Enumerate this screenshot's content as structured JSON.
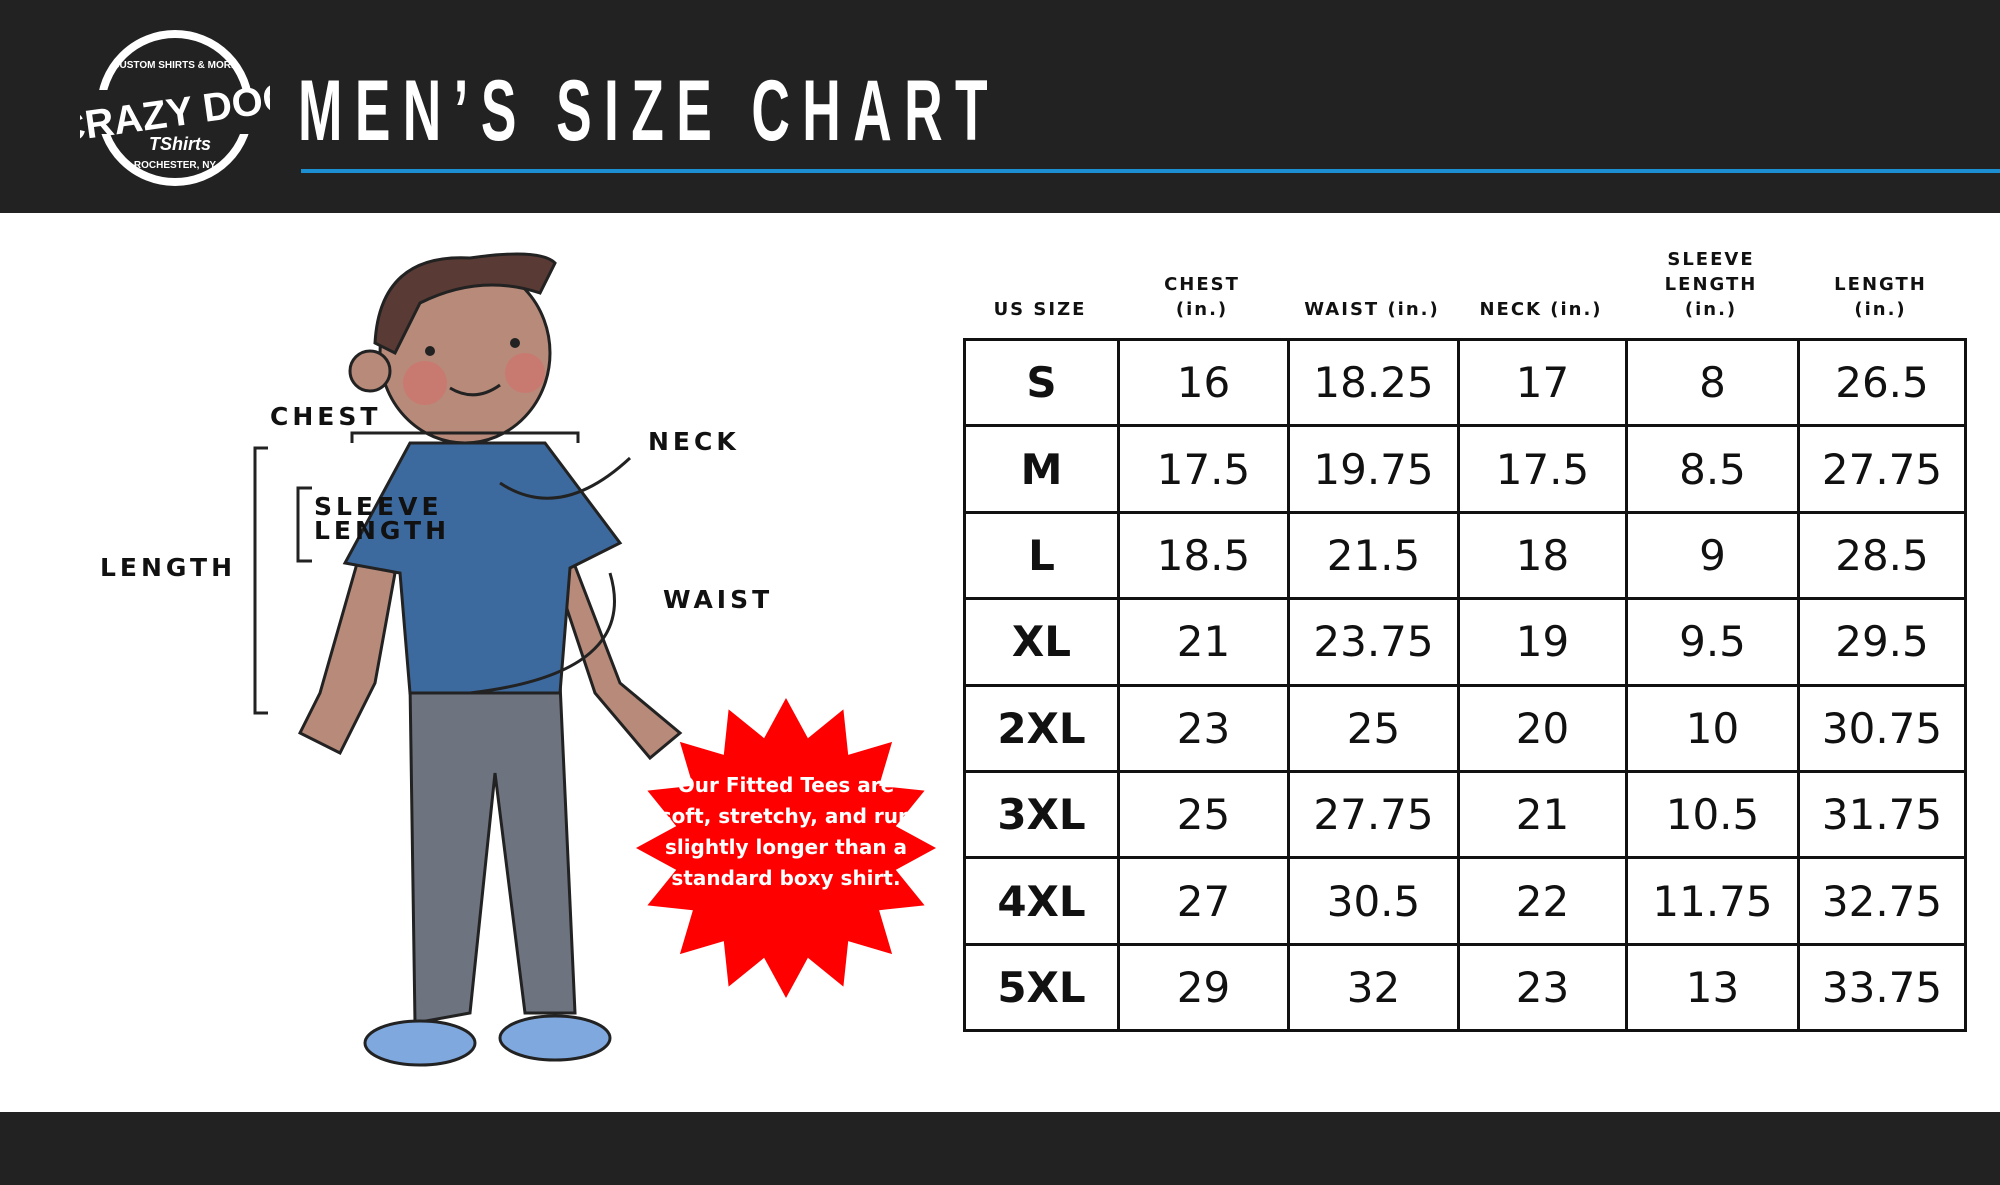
{
  "colors": {
    "accent": "#1b8fd2",
    "header_bg": "#222222",
    "burst": "#ff0000"
  },
  "logo": {
    "text": "CRAZY DOG",
    "sub": "TShirts",
    "top": "CUSTOM SHIRTS & MORE",
    "bottom": "ROCHESTER, NY"
  },
  "title": "MEN’S SIZE CHART",
  "figure_labels": {
    "chest": "CHEST",
    "neck": "NECK",
    "sleeve1": "SLEEVE",
    "sleeve2": "LENGTH",
    "length": "LENGTH",
    "waist": "WAIST"
  },
  "note": "Our Fitted Tees are soft, stretchy, and run slightly longer than a standard boxy shirt.",
  "table": {
    "headers": [
      [
        "US SIZE"
      ],
      [
        "CHEST",
        "(in.)"
      ],
      [
        "WAIST (in.)"
      ],
      [
        "NECK (in.)"
      ],
      [
        "SLEEVE",
        "LENGTH",
        "(in.)"
      ],
      [
        "LENGTH",
        "(in.)"
      ]
    ],
    "rows": [
      [
        "S",
        "16",
        "18.25",
        "17",
        "8",
        "26.5"
      ],
      [
        "M",
        "17.5",
        "19.75",
        "17.5",
        "8.5",
        "27.75"
      ],
      [
        "L",
        "18.5",
        "21.5",
        "18",
        "9",
        "28.5"
      ],
      [
        "XL",
        "21",
        "23.75",
        "19",
        "9.5",
        "29.5"
      ],
      [
        "2XL",
        "23",
        "25",
        "20",
        "10",
        "30.75"
      ],
      [
        "3XL",
        "25",
        "27.75",
        "21",
        "10.5",
        "31.75"
      ],
      [
        "4XL",
        "27",
        "30.5",
        "22",
        "11.75",
        "32.75"
      ],
      [
        "5XL",
        "29",
        "32",
        "23",
        "13",
        "33.75"
      ]
    ]
  }
}
